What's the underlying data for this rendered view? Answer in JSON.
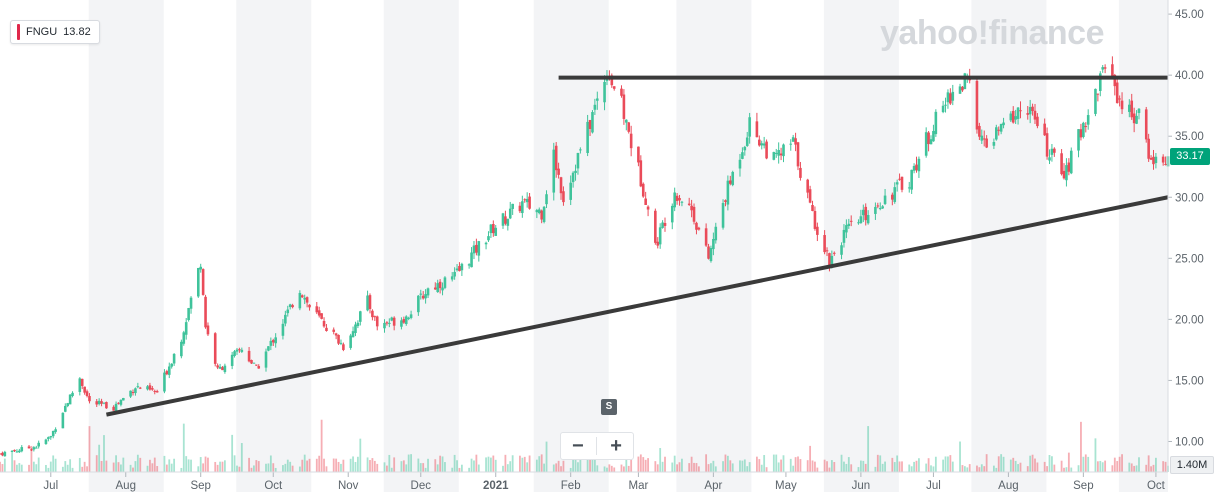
{
  "ticker": {
    "symbol": "FNGU",
    "value": "13.82",
    "color": "#e0284b"
  },
  "watermark": "yahoo!finance",
  "last_price": "33.17",
  "volume_label": "1.40M",
  "split_badge": "S",
  "zoom": {
    "minus": "−",
    "plus": "+"
  },
  "colors": {
    "up": "#3fc39b",
    "down": "#ea4b59",
    "trendline": "#3a3a3a",
    "band": "#f3f4f6",
    "last_price_bg": "#00a37a"
  },
  "chart_data": {
    "type": "candlestick",
    "title": "",
    "xlabel": "",
    "ylabel": "",
    "ylim": [
      7.5,
      45.5
    ],
    "y_ticks": [
      "45.00",
      "40.00",
      "35.00",
      "30.00",
      "25.00",
      "20.00",
      "15.00",
      "10.00"
    ],
    "y_tick_values": [
      45,
      40,
      35,
      30,
      25,
      20,
      15,
      10
    ],
    "x_ticks": [
      "Jul",
      "Aug",
      "Sep",
      "Oct",
      "Nov",
      "Dec",
      "2021",
      "Feb",
      "Mar",
      "Apr",
      "May",
      "Jun",
      "Jul",
      "Aug",
      "Sep",
      "Oct"
    ],
    "x_tick_dates": [
      "2020-07-01",
      "2020-08-01",
      "2020-09-01",
      "2020-10-01",
      "2020-11-01",
      "2020-12-01",
      "2021-01-01",
      "2021-02-01",
      "2021-03-01",
      "2021-04-01",
      "2021-05-01",
      "2021-06-01",
      "2021-07-01",
      "2021-08-01",
      "2021-09-01",
      "2021-10-01"
    ],
    "x_range": [
      "2020-06-10",
      "2021-10-06"
    ],
    "grid": false,
    "alternating_month_bands": true,
    "close_path": [
      [
        "2020-06-10",
        9.0
      ],
      [
        "2020-06-25",
        9.6
      ],
      [
        "2020-07-01",
        10.4
      ],
      [
        "2020-07-06",
        12.5
      ],
      [
        "2020-07-13",
        15.2
      ],
      [
        "2020-07-17",
        13.2
      ],
      [
        "2020-07-27",
        12.8
      ],
      [
        "2020-08-05",
        14.5
      ],
      [
        "2020-08-14",
        14.0
      ],
      [
        "2020-08-24",
        18.5
      ],
      [
        "2020-09-01",
        24.8
      ],
      [
        "2020-09-03",
        19.5
      ],
      [
        "2020-09-08",
        15.8
      ],
      [
        "2020-09-18",
        17.6
      ],
      [
        "2020-09-24",
        15.9
      ],
      [
        "2020-10-05",
        19.8
      ],
      [
        "2020-10-12",
        22.5
      ],
      [
        "2020-10-16",
        21.0
      ],
      [
        "2020-10-30",
        17.8
      ],
      [
        "2020-11-09",
        21.5
      ],
      [
        "2020-11-13",
        19.5
      ],
      [
        "2020-11-25",
        20.2
      ],
      [
        "2020-12-04",
        22.5
      ],
      [
        "2020-12-15",
        23.5
      ],
      [
        "2020-12-31",
        27.5
      ],
      [
        "2021-01-12",
        29.5
      ],
      [
        "2021-01-20",
        28.8
      ],
      [
        "2021-01-25",
        33.5
      ],
      [
        "2021-01-29",
        30.0
      ],
      [
        "2021-02-08",
        35.5
      ],
      [
        "2021-02-16",
        40.5
      ],
      [
        "2021-02-22",
        37.5
      ],
      [
        "2021-03-04",
        30.0
      ],
      [
        "2021-03-08",
        26.0
      ],
      [
        "2021-03-16",
        30.5
      ],
      [
        "2021-03-23",
        29.0
      ],
      [
        "2021-03-30",
        25.0
      ],
      [
        "2021-04-05",
        29.5
      ],
      [
        "2021-04-16",
        36.0
      ],
      [
        "2021-04-26",
        33.0
      ],
      [
        "2021-05-04",
        34.5
      ],
      [
        "2021-05-12",
        28.5
      ],
      [
        "2021-05-19",
        24.8
      ],
      [
        "2021-05-25",
        27.0
      ],
      [
        "2021-06-08",
        29.5
      ],
      [
        "2021-06-21",
        31.5
      ],
      [
        "2021-06-30",
        35.5
      ],
      [
        "2021-07-08",
        38.5
      ],
      [
        "2021-07-15",
        39.5
      ],
      [
        "2021-07-22",
        34.0
      ],
      [
        "2021-08-02",
        36.5
      ],
      [
        "2021-08-09",
        37.5
      ],
      [
        "2021-08-18",
        33.5
      ],
      [
        "2021-08-25",
        32.0
      ],
      [
        "2021-08-31",
        35.5
      ],
      [
        "2021-09-07",
        39.0
      ],
      [
        "2021-09-10",
        41.2
      ],
      [
        "2021-09-17",
        37.5
      ],
      [
        "2021-09-24",
        36.5
      ],
      [
        "2021-09-29",
        33.0
      ],
      [
        "2021-10-06",
        33.17
      ]
    ],
    "trendlines": [
      {
        "from": [
          "2020-07-24",
          12.2
        ],
        "to": [
          "2021-10-06",
          30.0
        ]
      },
      {
        "from": [
          "2021-01-27",
          39.8
        ],
        "to": [
          "2021-10-06",
          39.8
        ]
      }
    ]
  }
}
